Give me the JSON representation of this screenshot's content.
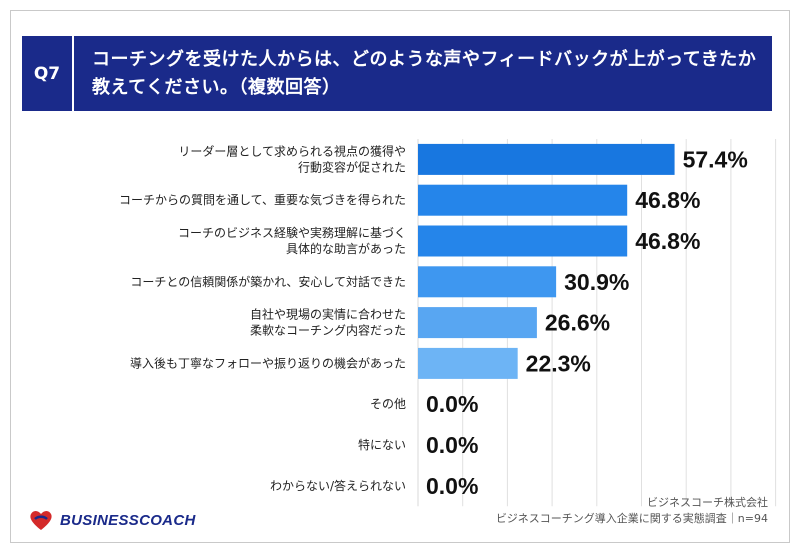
{
  "question": {
    "badge": "Q7",
    "text": "コーチングを受けた人からは、どのような声やフィードバックが上がってきたか教えてください。（複数回答）"
  },
  "chart_data": {
    "type": "bar",
    "orientation": "horizontal",
    "categories": [
      [
        "リーダー層として求められる視点の獲得や",
        "行動変容が促された"
      ],
      [
        "コーチからの質問を通して、重要な気づきを得られた"
      ],
      [
        "コーチのビジネス経験や実務理解に基づく",
        "具体的な助言があった"
      ],
      [
        "コーチとの信頼関係が築かれ、安心して対話できた"
      ],
      [
        "自社や現場の実情に合わせた",
        "柔軟なコーチング内容だった"
      ],
      [
        "導入後も丁寧なフォローや振り返りの機会があった"
      ],
      [
        "その他"
      ],
      [
        "特にない"
      ],
      [
        "わからない/答えられない"
      ]
    ],
    "values": [
      57.4,
      46.8,
      46.8,
      30.9,
      26.6,
      22.3,
      0.0,
      0.0,
      0.0
    ],
    "value_labels": [
      "57.4%",
      "46.8%",
      "46.8%",
      "30.9%",
      "26.6%",
      "22.3%",
      "0.0%",
      "0.0%",
      "0.0%"
    ],
    "unit": "%",
    "xlim": [
      0,
      80
    ],
    "grid": true,
    "colors": [
      "#1877e0",
      "#2585ea",
      "#2585ea",
      "#3e97f0",
      "#58a6f2",
      "#6db4f5",
      "#6db4f5",
      "#6db4f5",
      "#6db4f5"
    ]
  },
  "footer": {
    "logo_text": "BUSINESSCOACH",
    "company": "ビジネスコーチ株式会社",
    "survey": "ビジネスコーチング導入企業に関する実態調査｜n=94"
  },
  "colors": {
    "header_bg": "#1a2a8a",
    "logo_red": "#d42a2a",
    "grid": "#e0e0e0"
  }
}
